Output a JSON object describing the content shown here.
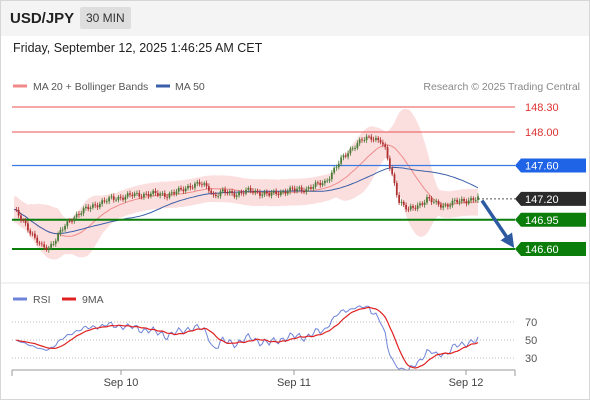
{
  "header": {
    "symbol": "USD/JPY",
    "interval": "30 MIN",
    "datetime": "Friday, September 12, 2025 1:46:25 AM CET"
  },
  "legend": {
    "ma20": "MA 20 + Bollinger Bands",
    "ma50": "MA 50",
    "credit": "Research © 2025 Trading Central",
    "rsi": "RSI",
    "rsi_ma": "9MA"
  },
  "colors": {
    "bollinger_fill": "#f9d4d4",
    "ma20": "#f08a8a",
    "ma50": "#3a5fa8",
    "bullish_candle": "#4a7a36",
    "bearish_candle": "#b03030",
    "resistance": "#e85050",
    "pivot_line": "#3a7ae0",
    "pivot_tag": "#1f63e6",
    "support": "#0b7d0b",
    "last_price_tag": "#2b2b2b",
    "arrow": "#2d5aa0",
    "rsi_line": "#6f84d8",
    "rsi_ma_line": "#e02020"
  },
  "chart_data": [
    {
      "type": "candlestick",
      "x_labels": [
        "Sep 10",
        "Sep 11",
        "Sep 12"
      ],
      "ylim": [
        146.4,
        148.4
      ],
      "last_price": 147.2,
      "levels": [
        {
          "label": "148.30",
          "value": 148.3,
          "kind": "resistance"
        },
        {
          "label": "148.00",
          "value": 148.0,
          "kind": "resistance"
        },
        {
          "label": "147.60",
          "value": 147.6,
          "kind": "pivot"
        },
        {
          "label": "147.20",
          "value": 147.2,
          "kind": "last"
        },
        {
          "label": "146.95",
          "value": 146.95,
          "kind": "support"
        },
        {
          "label": "146.60",
          "value": 146.6,
          "kind": "support"
        }
      ],
      "forecast_arrow": {
        "from": 147.18,
        "to": 146.62
      }
    },
    {
      "type": "line",
      "series_names": [
        "RSI",
        "9MA"
      ],
      "ylim": [
        10,
        90
      ],
      "yticks": [
        "70",
        "50",
        "30"
      ],
      "x_labels": [
        "Sep 10",
        "Sep 11",
        "Sep 12"
      ]
    }
  ]
}
